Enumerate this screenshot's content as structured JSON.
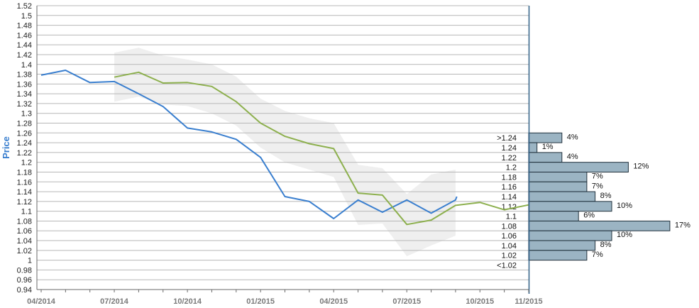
{
  "chart_data": {
    "type": "line",
    "ylabel": "Price",
    "ylim": [
      0.94,
      1.52
    ],
    "y_ticks": [
      0.94,
      0.96,
      0.98,
      1,
      1.02,
      1.04,
      1.06,
      1.08,
      1.1,
      1.12,
      1.14,
      1.16,
      1.18,
      1.2,
      1.22,
      1.24,
      1.26,
      1.28,
      1.3,
      1.32,
      1.34,
      1.36,
      1.38,
      1.4,
      1.42,
      1.44,
      1.46,
      1.48,
      1.5,
      1.52
    ],
    "y_tick_labels": [
      "0.94",
      "0.96",
      "0.98",
      "1",
      "1.02",
      "1.04",
      "1.06",
      "1.08",
      "1.1",
      "1.12",
      "1.14",
      "1.16",
      "1.18",
      "1.2",
      "1.22",
      "1.24",
      "1.26",
      "1.28",
      "1.3",
      "1.32",
      "1.34",
      "1.36",
      "1.38",
      "1.4",
      "1.42",
      "1.44",
      "1.46",
      "1.48",
      "1.5",
      "1.52"
    ],
    "x_tick_labels": [
      {
        "label": "04/2014",
        "x": 0
      },
      {
        "label": "07/2014",
        "x": 3
      },
      {
        "label": "10/2014",
        "x": 6
      },
      {
        "label": "01/2015",
        "x": 9
      },
      {
        "label": "04/2015",
        "x": 12
      },
      {
        "label": "07/2015",
        "x": 15
      },
      {
        "label": "10/2015",
        "x": 18
      },
      {
        "label": "11/2015",
        "x": 20
      }
    ],
    "x_range": [
      0,
      20
    ],
    "grid": true,
    "series": [
      {
        "color": "#3a7fcf",
        "points": [
          [
            0,
            1.378
          ],
          [
            1,
            1.388
          ],
          [
            2,
            1.363
          ],
          [
            3,
            1.365
          ],
          [
            4,
            1.34
          ],
          [
            5,
            1.314
          ],
          [
            6,
            1.27
          ],
          [
            7,
            1.262
          ],
          [
            8,
            1.247
          ],
          [
            9,
            1.21
          ],
          [
            10,
            1.13
          ],
          [
            11,
            1.12
          ],
          [
            12,
            1.085
          ],
          [
            13,
            1.123
          ],
          [
            14,
            1.098
          ],
          [
            15,
            1.123
          ],
          [
            16,
            1.096
          ],
          [
            17,
            1.123
          ],
          [
            17.05,
            1.13
          ]
        ]
      },
      {
        "color": "#8db04e",
        "points": [
          [
            3,
            1.374
          ],
          [
            4,
            1.384
          ],
          [
            5,
            1.362
          ],
          [
            6,
            1.363
          ],
          [
            7,
            1.355
          ],
          [
            8,
            1.324
          ],
          [
            9,
            1.28
          ],
          [
            10,
            1.253
          ],
          [
            11,
            1.238
          ],
          [
            12,
            1.228
          ],
          [
            13,
            1.137
          ],
          [
            14,
            1.133
          ],
          [
            15,
            1.073
          ],
          [
            16,
            1.082
          ],
          [
            17,
            1.112
          ],
          [
            18,
            1.118
          ],
          [
            19,
            1.103
          ],
          [
            20,
            1.113
          ]
        ]
      }
    ],
    "band": {
      "color": "#efefef",
      "upper": [
        [
          3,
          1.424
        ],
        [
          4,
          1.434
        ],
        [
          5,
          1.418
        ],
        [
          6,
          1.41
        ],
        [
          7,
          1.4
        ],
        [
          8,
          1.375
        ],
        [
          9,
          1.33
        ],
        [
          10,
          1.305
        ],
        [
          11,
          1.29
        ],
        [
          12,
          1.28
        ],
        [
          13,
          1.195
        ],
        [
          14,
          1.188
        ],
        [
          15,
          1.135
        ],
        [
          16,
          1.175
        ],
        [
          17,
          1.185
        ]
      ],
      "lower": [
        [
          3,
          1.324
        ],
        [
          4,
          1.334
        ],
        [
          5,
          1.318
        ],
        [
          6,
          1.315
        ],
        [
          7,
          1.3
        ],
        [
          8,
          1.275
        ],
        [
          9,
          1.23
        ],
        [
          10,
          1.2
        ],
        [
          11,
          1.185
        ],
        [
          12,
          1.17
        ],
        [
          13,
          1.072
        ],
        [
          14,
          1.075
        ],
        [
          15,
          1.008
        ],
        [
          16,
          1.03
        ],
        [
          17,
          1.05
        ]
      ]
    },
    "histogram": {
      "bar_color": "#9bb4c3",
      "bins": [
        {
          "label": ">1.24",
          "center": 1.25,
          "pct": 4,
          "value_label": "4%"
        },
        {
          "label": "1.24",
          "center": 1.23,
          "pct": 1,
          "value_label": "1%"
        },
        {
          "label": "1.22",
          "center": 1.21,
          "pct": 4,
          "value_label": "4%"
        },
        {
          "label": "1.2",
          "center": 1.19,
          "pct": 12,
          "value_label": "12%"
        },
        {
          "label": "1.18",
          "center": 1.17,
          "pct": 7,
          "value_label": "7%"
        },
        {
          "label": "1.16",
          "center": 1.15,
          "pct": 7,
          "value_label": "7%"
        },
        {
          "label": "1.14",
          "center": 1.13,
          "pct": 8,
          "value_label": "8%"
        },
        {
          "label": "1.12",
          "center": 1.11,
          "pct": 10,
          "value_label": "10%"
        },
        {
          "label": "1.1",
          "center": 1.09,
          "pct": 6,
          "value_label": "6%"
        },
        {
          "label": "1.08",
          "center": 1.07,
          "pct": 17,
          "value_label": "17%"
        },
        {
          "label": "1.06",
          "center": 1.05,
          "pct": 10,
          "value_label": "10%"
        },
        {
          "label": "1.04",
          "center": 1.03,
          "pct": 8,
          "value_label": "8%"
        },
        {
          "label": "1.02",
          "center": 1.01,
          "pct": 7,
          "value_label": "7%"
        },
        {
          "label": "<1.02",
          "center": 0.99,
          "pct": 0,
          "value_label": ""
        }
      ]
    }
  }
}
